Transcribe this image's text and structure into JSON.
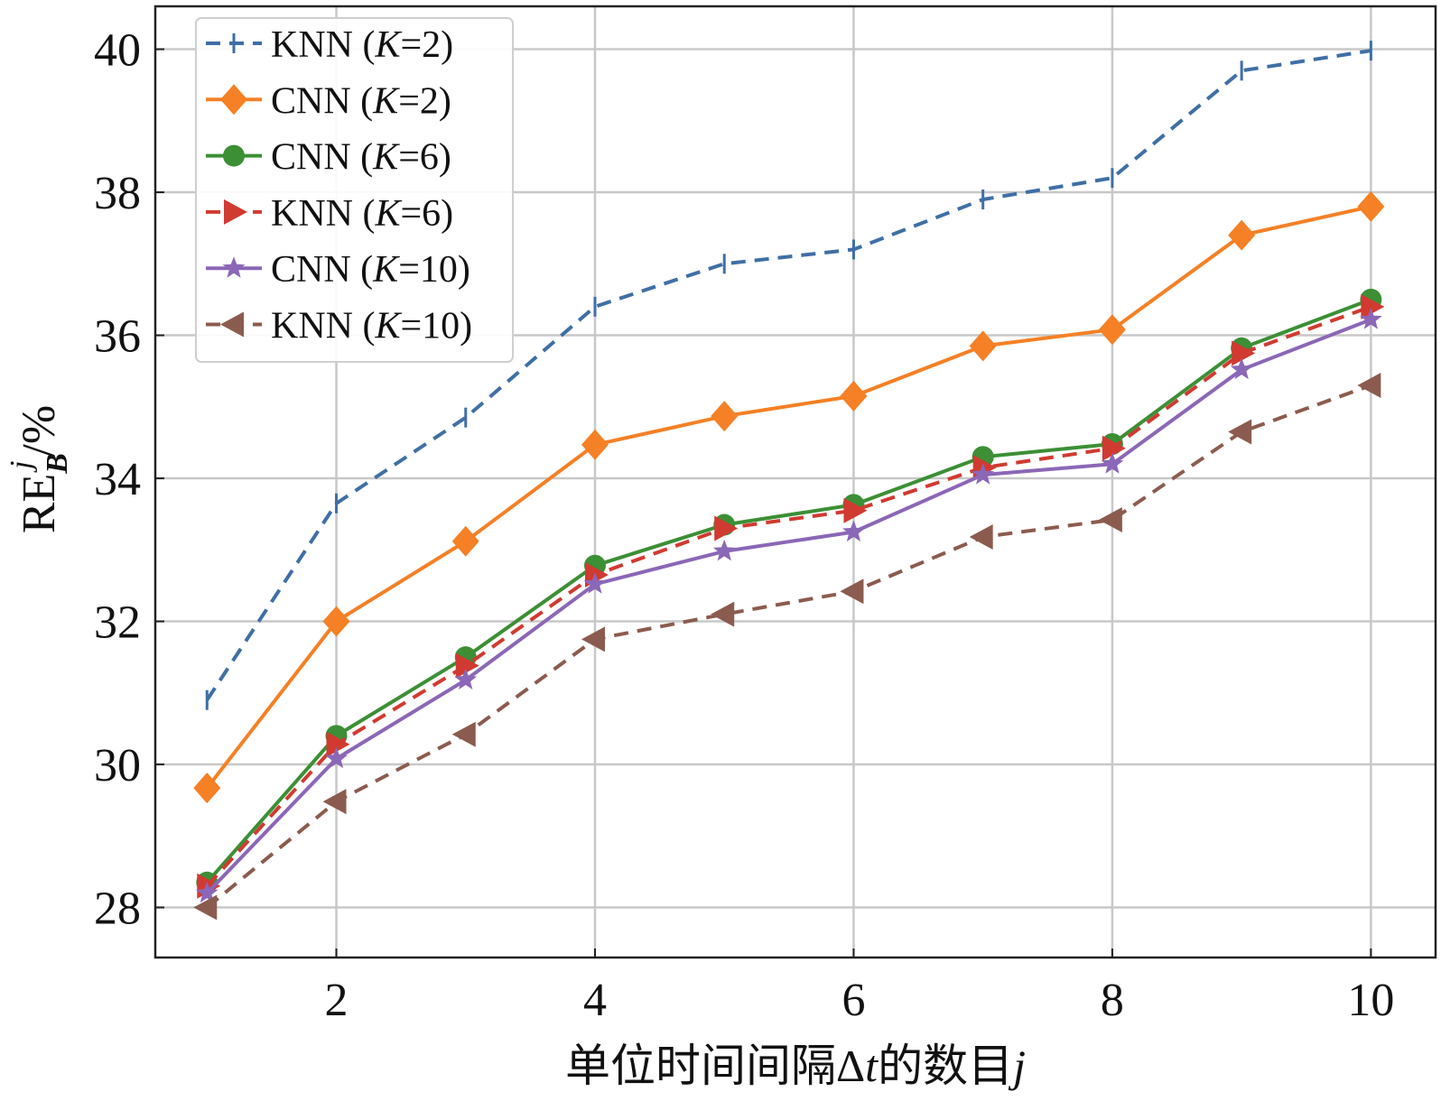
{
  "chart_data": {
    "type": "line",
    "title": "",
    "xlabel": "单位时间间隔Δt的数目j",
    "xlabel_parts": {
      "prefix": "单位时间间隔",
      "delta": "Δ",
      "t": "t",
      "middle": "的数目",
      "j": "j"
    },
    "ylabel": "RE_B^j /%",
    "ylabel_parts": {
      "main": "RE",
      "sub": "B",
      "sup": "j",
      "suffix": "/%"
    },
    "xlim": [
      0.6,
      10.5
    ],
    "ylim": [
      27.3,
      40.6
    ],
    "xticks": [
      2,
      4,
      6,
      8,
      10
    ],
    "yticks": [
      28,
      30,
      32,
      34,
      36,
      38,
      40
    ],
    "grid": true,
    "legend_position": "top-left",
    "x": [
      1,
      2,
      3,
      4,
      5,
      6,
      7,
      8,
      9,
      10
    ],
    "series": [
      {
        "name": "KNN (K=2)",
        "label_prefix": "KNN (",
        "label_k": "K",
        "label_suffix": "=2)",
        "color": "#3f6fa5",
        "line": "dashed",
        "marker": "tick",
        "values": [
          30.9,
          33.65,
          34.85,
          36.4,
          37.0,
          37.2,
          37.9,
          38.2,
          39.7,
          39.98
        ]
      },
      {
        "name": "CNN (K=2)",
        "label_prefix": "CNN (",
        "label_k": "K",
        "label_suffix": "=2)",
        "color": "#f58025",
        "line": "solid",
        "marker": "diamond",
        "values": [
          29.67,
          32.0,
          33.12,
          34.47,
          34.87,
          35.15,
          35.85,
          36.08,
          37.4,
          37.8
        ]
      },
      {
        "name": "CNN (K=6)",
        "label_prefix": "CNN (",
        "label_k": "K",
        "label_suffix": "=6)",
        "color": "#3c8f35",
        "line": "solid",
        "marker": "circle",
        "values": [
          28.35,
          30.4,
          31.5,
          32.78,
          33.35,
          33.63,
          34.3,
          34.48,
          35.82,
          36.5
        ]
      },
      {
        "name": "KNN (K=6)",
        "label_prefix": "KNN (",
        "label_k": "K",
        "label_suffix": "=6)",
        "color": "#d13a30",
        "line": "dashed",
        "marker": "triangle-right",
        "values": [
          28.3,
          30.28,
          31.38,
          32.65,
          33.3,
          33.55,
          34.15,
          34.42,
          35.75,
          36.4
        ]
      },
      {
        "name": "CNN (K=10)",
        "label_prefix": "CNN (",
        "label_k": "K",
        "label_suffix": "=10)",
        "color": "#8b67b7",
        "line": "solid",
        "marker": "star",
        "values": [
          28.2,
          30.08,
          31.18,
          32.52,
          32.98,
          33.25,
          34.05,
          34.2,
          35.52,
          36.22
        ]
      },
      {
        "name": "KNN (K=10)",
        "label_prefix": "KNN (",
        "label_k": "K",
        "label_suffix": "=10)",
        "color": "#8c5b4f",
        "line": "dashed",
        "marker": "triangle-left",
        "values": [
          28.0,
          29.48,
          30.42,
          31.75,
          32.1,
          32.42,
          33.18,
          33.42,
          34.65,
          35.3
        ]
      }
    ]
  }
}
